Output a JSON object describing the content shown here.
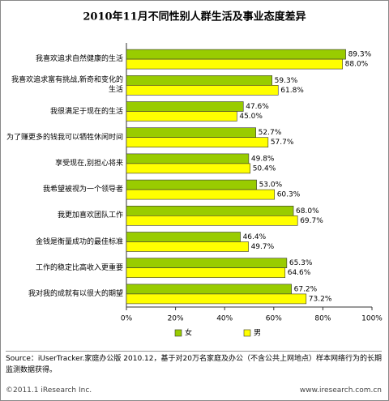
{
  "chart_data": {
    "type": "hbar",
    "title": "2010年11月不同性别人群生活及事业态度差异",
    "categories": [
      "我喜欢追求自然健康的生活",
      "我喜欢追求富有挑战,新奇和变化的生活",
      "我很满足于现在的生活",
      "为了赚更多的钱我可以牺牲休闲时间",
      "享受现在,别担心将来",
      "我希望被视为一个领导者",
      "我更加喜欢团队工作",
      "金钱是衡量成功的最佳标准",
      "工作的稳定比高收入更重要",
      "我对我的成就有以很大的期望"
    ],
    "series": [
      {
        "name": "女",
        "color": "#99cc00",
        "values": [
          89.3,
          59.3,
          47.6,
          52.7,
          49.8,
          53.0,
          68.0,
          46.4,
          65.3,
          67.2
        ],
        "value_labels": [
          "89.3%",
          "59.3%",
          "47.6%",
          "52.7%",
          "49.8%",
          "53.0%",
          "68.0%",
          "46.4%",
          "65.3%",
          "67.2%"
        ]
      },
      {
        "name": "男",
        "color": "#ffff00",
        "values": [
          88.0,
          61.8,
          45.0,
          57.7,
          50.4,
          60.3,
          69.7,
          49.7,
          64.6,
          73.2
        ],
        "value_labels": [
          "88.0%",
          "61.8%",
          "45.0%",
          "57.7%",
          "50.4%",
          "60.3%",
          "69.7%",
          "49.7%",
          "64.6%",
          "73.2%"
        ]
      }
    ],
    "xlim": [
      0,
      100
    ],
    "xticks": [
      {
        "value": 0,
        "label": "0%"
      },
      {
        "value": 20,
        "label": "20%"
      },
      {
        "value": 40,
        "label": "40%"
      },
      {
        "value": 60,
        "label": "60%"
      },
      {
        "value": 80,
        "label": "80%"
      },
      {
        "value": 100,
        "label": "100%"
      }
    ],
    "legend": "bottom"
  },
  "source": "Source：iUserTracker.家庭办公版 2010.12，基于对20万名家庭及办公（不含公共上网地点）样本网络行为的长期监测数据获得。",
  "copyright": "©2011.1 iResearch Inc.",
  "website": "www.iresearch.com.cn"
}
